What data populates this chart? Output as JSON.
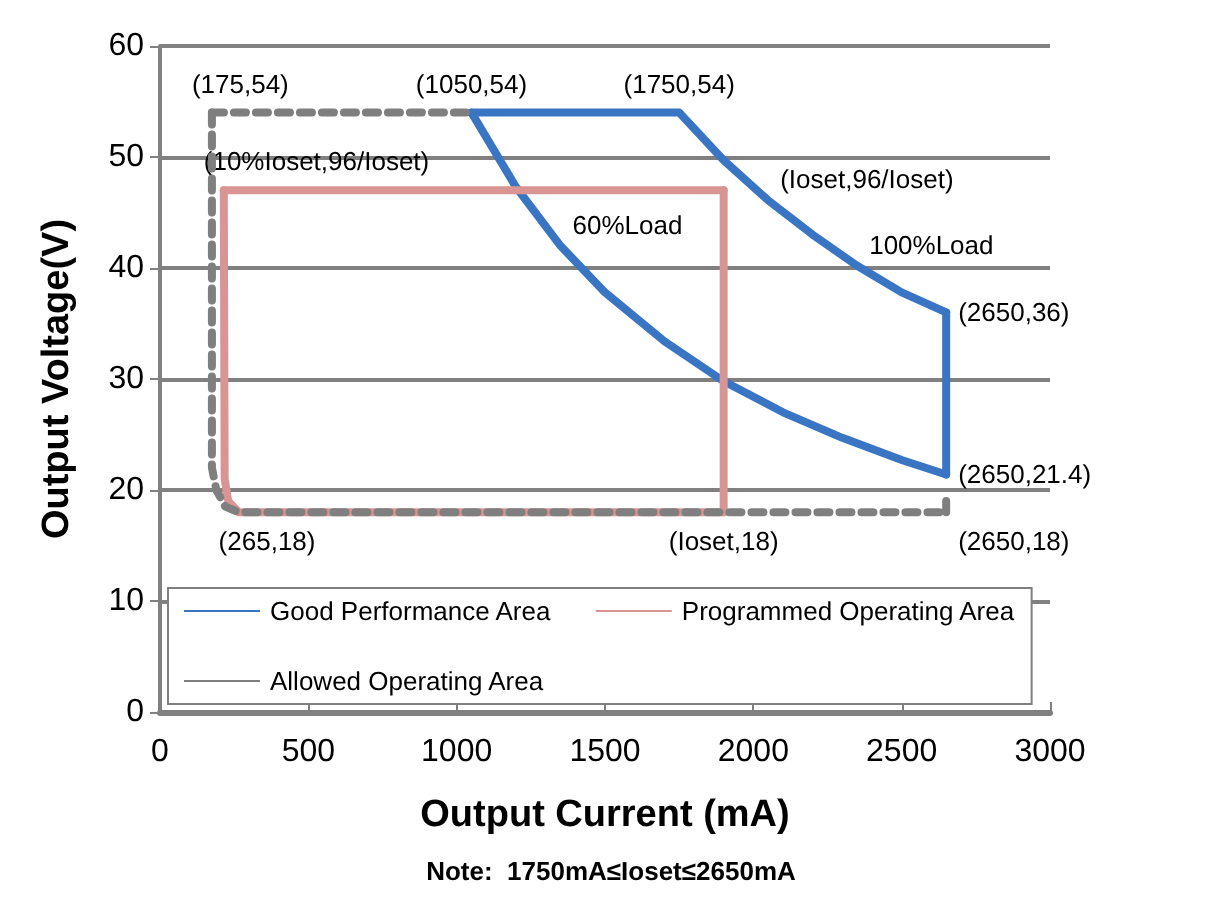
{
  "chart_data": {
    "type": "line",
    "xlabel": "Output Current (mA)",
    "ylabel": "Output Voltage(V)",
    "xlim": [
      0,
      3000
    ],
    "xticks": [
      0,
      500,
      1000,
      1500,
      2000,
      2500,
      3000
    ],
    "ylim": [
      0,
      60
    ],
    "yticks": [
      0,
      10,
      20,
      30,
      40,
      50,
      60
    ],
    "grid": "y",
    "legend": "bottom left",
    "marker": "none",
    "series": [
      {
        "name": "Good Performance Area",
        "color": "#3a75c4",
        "line_style": "solid",
        "x": [
          1050,
          1750,
          1900,
          2050,
          2200,
          2350,
          2500,
          2650
        ],
        "values": [
          54,
          54,
          49.7,
          46.1,
          43,
          40.2,
          37.8,
          36
        ]
      },
      {
        "color": "#3a75c4",
        "line_style": "solid",
        "x": [
          2650,
          2650
        ],
        "values": [
          36,
          21.4
        ]
      },
      {
        "color": "#3a75c4",
        "line_style": "solid",
        "x": [
          1050,
          1200,
          1350,
          1500,
          1700,
          1900,
          2100,
          2300,
          2500,
          2650
        ],
        "values": [
          54,
          47.3,
          42,
          37.8,
          33.4,
          29.8,
          27,
          24.7,
          22.7,
          21.4
        ]
      },
      {
        "name": "Programmed Operating Area",
        "color": "#d99594",
        "line_style": "solid",
        "x": [
          215,
          1900
        ],
        "values": [
          47,
          47
        ]
      },
      {
        "color": "#d99594",
        "line_style": "solid",
        "x": [
          1900,
          1900
        ],
        "values": [
          47,
          18
        ]
      },
      {
        "color": "#d99594",
        "line_style": "solid",
        "x": [
          215,
          218,
          230,
          265,
          1900
        ],
        "values": [
          47,
          21,
          19,
          18,
          18
        ]
      },
      {
        "name": "Allowed Operating Area",
        "color": "#7f7f7f",
        "line_style": "dashed",
        "x": [
          175,
          1050
        ],
        "values": [
          54,
          54
        ]
      },
      {
        "color": "#7f7f7f",
        "line_style": "dashed",
        "x": [
          175,
          175,
          190,
          220,
          265,
          2650
        ],
        "values": [
          54,
          22,
          20,
          18.5,
          18,
          18
        ]
      },
      {
        "color": "#7f7f7f",
        "line_style": "dashed",
        "x": [
          2650,
          2650
        ],
        "values": [
          18,
          19
        ]
      }
    ],
    "annotations": [
      {
        "text": "(175,54)",
        "x": 175,
        "y": 54
      },
      {
        "text": "(1050,54)",
        "x": 1050,
        "y": 54
      },
      {
        "text": "(1750,54)",
        "x": 1750,
        "y": 54
      },
      {
        "text": "(Ioset,96/Ioset)",
        "x": 2050,
        "y": 46.1
      },
      {
        "text": "100%Load",
        "x": 2350,
        "y": 40.2
      },
      {
        "text": "(10%Ioset,96/Ioset)",
        "x": 215,
        "y": 47
      },
      {
        "text": "60%Load",
        "x": 1350,
        "y": 42
      },
      {
        "text": "(2650,36)",
        "x": 2650,
        "y": 36
      },
      {
        "text": "(2650,21.4)",
        "x": 2650,
        "y": 21.4
      },
      {
        "text": "(2650,18)",
        "x": 2650,
        "y": 18
      },
      {
        "text": "(265,18)",
        "x": 265,
        "y": 18
      },
      {
        "text": "(Ioset,18)",
        "x": 1900,
        "y": 18
      },
      "Note:  1750mA≤Ioset≤2650mA"
    ]
  }
}
